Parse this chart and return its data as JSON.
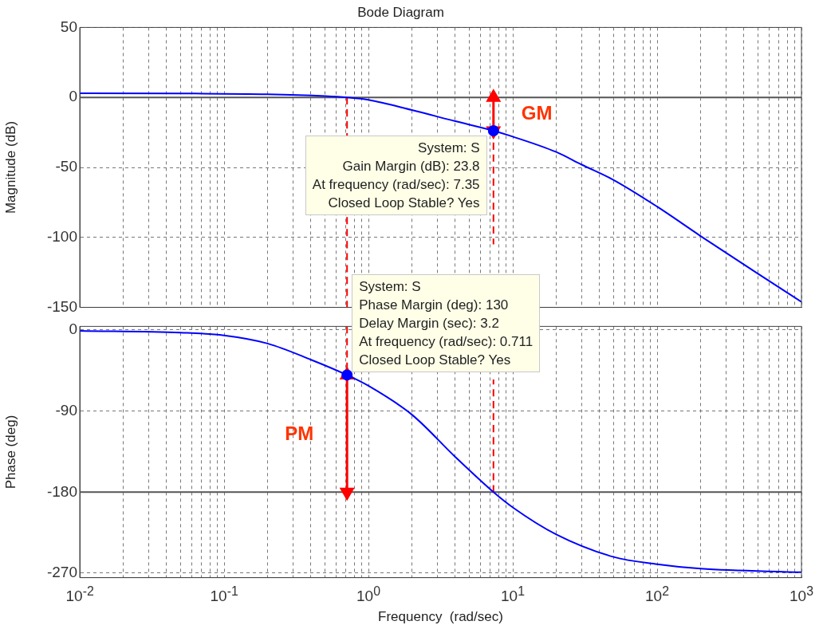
{
  "chart_data": [
    {
      "type": "line",
      "title": "Bode Diagram",
      "ylabel": "Magnitude (dB)",
      "log": "x",
      "grid": true,
      "tick_labels": "y",
      "xlim": [
        0.01,
        1000
      ],
      "xticks": [
        {
          "value": 0.01,
          "label": null
        },
        {
          "value": 0.02,
          "label": null
        },
        {
          "value": 0.03,
          "label": null
        },
        {
          "value": 0.04,
          "label": null
        },
        {
          "value": 0.05,
          "label": null
        },
        {
          "value": 0.06,
          "label": null
        },
        {
          "value": 0.07,
          "label": null
        },
        {
          "value": 0.08,
          "label": null
        },
        {
          "value": 0.09,
          "label": null
        },
        {
          "value": 0.1,
          "label": null
        },
        {
          "value": 0.2,
          "label": null
        },
        {
          "value": 0.3,
          "label": null
        },
        {
          "value": 0.4,
          "label": null
        },
        {
          "value": 0.5,
          "label": null
        },
        {
          "value": 0.6,
          "label": null
        },
        {
          "value": 0.7,
          "label": null
        },
        {
          "value": 0.8,
          "label": null
        },
        {
          "value": 0.9,
          "label": null
        },
        {
          "value": 1,
          "label": null
        },
        {
          "value": 2,
          "label": null
        },
        {
          "value": 3,
          "label": null
        },
        {
          "value": 4,
          "label": null
        },
        {
          "value": 5,
          "label": null
        },
        {
          "value": 6,
          "label": null
        },
        {
          "value": 7,
          "label": null
        },
        {
          "value": 8,
          "label": null
        },
        {
          "value": 9,
          "label": null
        },
        {
          "value": 10,
          "label": null
        },
        {
          "value": 20,
          "label": null
        },
        {
          "value": 30,
          "label": null
        },
        {
          "value": 40,
          "label": null
        },
        {
          "value": 50,
          "label": null
        },
        {
          "value": 60,
          "label": null
        },
        {
          "value": 70,
          "label": null
        },
        {
          "value": 80,
          "label": null
        },
        {
          "value": 90,
          "label": null
        },
        {
          "value": 100,
          "label": null
        },
        {
          "value": 200,
          "label": null
        },
        {
          "value": 300,
          "label": null
        },
        {
          "value": 400,
          "label": null
        },
        {
          "value": 500,
          "label": null
        },
        {
          "value": 600,
          "label": null
        },
        {
          "value": 700,
          "label": null
        },
        {
          "value": 800,
          "label": null
        },
        {
          "value": 900,
          "label": null
        },
        {
          "value": 1000,
          "label": null
        }
      ],
      "ylim": [
        -150,
        50
      ],
      "yticks": [
        -150,
        -100,
        -50,
        0,
        50
      ],
      "series": [
        {
          "color": "#0000ff",
          "marker": "none",
          "x": [
            0.01,
            0.05,
            0.2,
            0.5,
            0.711,
            1,
            2,
            4,
            7.35,
            10,
            20,
            30,
            50,
            100,
            200,
            500,
            1000
          ],
          "values": [
            2.9,
            2.8,
            2.3,
            1,
            0,
            -1.7,
            -9,
            -17,
            -23.8,
            -28,
            -39,
            -48,
            -59,
            -78,
            -99,
            -126,
            -146
          ]
        },
        {
          "type": "scatter",
          "color": "#0000ff",
          "marker": "circle",
          "x": [
            7.35
          ],
          "values": [
            -23.8
          ]
        },
        {
          "color": "#ff0000",
          "marker": "triangle",
          "x": [
            7.35,
            7.35
          ],
          "values": [
            0,
            -23.8
          ]
        },
        {
          "color": "#ff0000",
          "marker": "none",
          "line_style": "dashed",
          "x": [
            0.711,
            0.711
          ],
          "values": [
            0,
            -150
          ]
        },
        {
          "color": "#ff0000",
          "marker": "none",
          "line_style": "dashed",
          "x": [
            7.35,
            7.35
          ],
          "values": [
            -23.8,
            -105
          ]
        }
      ],
      "ref_lines": [
        {
          "axis": "y",
          "value": 0,
          "color": "#555555",
          "line_style": "solid"
        }
      ],
      "annotations": [
        "GM",
        "System: S\nGain Margin (dB): 23.8\nAt frequency (rad/sec): 7.35\nClosed Loop Stable? Yes"
      ]
    },
    {
      "type": "line",
      "xlabel": "Frequency  (rad/sec)",
      "ylabel": "Phase (deg)",
      "log": "x",
      "grid": true,
      "xlim": [
        0.01,
        1000
      ],
      "xticks": [
        {
          "value": 0.01,
          "label": "10$^{-2}$"
        },
        {
          "value": 0.02,
          "label": null
        },
        {
          "value": 0.03,
          "label": null
        },
        {
          "value": 0.04,
          "label": null
        },
        {
          "value": 0.05,
          "label": null
        },
        {
          "value": 0.06,
          "label": null
        },
        {
          "value": 0.07,
          "label": null
        },
        {
          "value": 0.08,
          "label": null
        },
        {
          "value": 0.09,
          "label": null
        },
        {
          "value": 0.1,
          "label": "10$^{-1}$"
        },
        {
          "value": 0.2,
          "label": null
        },
        {
          "value": 0.3,
          "label": null
        },
        {
          "value": 0.4,
          "label": null
        },
        {
          "value": 0.5,
          "label": null
        },
        {
          "value": 0.6,
          "label": null
        },
        {
          "value": 0.7,
          "label": null
        },
        {
          "value": 0.8,
          "label": null
        },
        {
          "value": 0.9,
          "label": null
        },
        {
          "value": 1,
          "label": "10$^{0}$"
        },
        {
          "value": 2,
          "label": null
        },
        {
          "value": 3,
          "label": null
        },
        {
          "value": 4,
          "label": null
        },
        {
          "value": 5,
          "label": null
        },
        {
          "value": 6,
          "label": null
        },
        {
          "value": 7,
          "label": null
        },
        {
          "value": 8,
          "label": null
        },
        {
          "value": 9,
          "label": null
        },
        {
          "value": 10,
          "label": "10$^{1}$"
        },
        {
          "value": 20,
          "label": null
        },
        {
          "value": 30,
          "label": null
        },
        {
          "value": 40,
          "label": null
        },
        {
          "value": 50,
          "label": null
        },
        {
          "value": 60,
          "label": null
        },
        {
          "value": 70,
          "label": null
        },
        {
          "value": 80,
          "label": null
        },
        {
          "value": 90,
          "label": null
        },
        {
          "value": 100,
          "label": "10$^{2}$"
        },
        {
          "value": 200,
          "label": null
        },
        {
          "value": 300,
          "label": null
        },
        {
          "value": 400,
          "label": null
        },
        {
          "value": 500,
          "label": null
        },
        {
          "value": 600,
          "label": null
        },
        {
          "value": 700,
          "label": null
        },
        {
          "value": 800,
          "label": null
        },
        {
          "value": 900,
          "label": null
        },
        {
          "value": 1000,
          "label": "10$^{3}$"
        }
      ],
      "ylim": [
        -275,
        4
      ],
      "yticks": [
        -270,
        -180,
        -90,
        0
      ],
      "series": [
        {
          "color": "#0000ff",
          "marker": "none",
          "x": [
            0.01,
            0.05,
            0.1,
            0.2,
            0.4,
            0.711,
            1,
            2,
            4,
            7.35,
            10,
            20,
            50,
            100,
            200,
            1000
          ],
          "values": [
            -1,
            -3,
            -6,
            -15,
            -33,
            -50,
            -62,
            -94,
            -141,
            -180,
            -197,
            -227,
            -252,
            -260,
            -265,
            -269
          ]
        },
        {
          "type": "scatter",
          "color": "#0000ff",
          "marker": "circle",
          "x": [
            0.711
          ],
          "values": [
            -50
          ]
        },
        {
          "color": "#ff0000",
          "marker": "triangle",
          "x": [
            0.711,
            0.711
          ],
          "values": [
            -180,
            -50
          ]
        },
        {
          "color": "#ff0000",
          "marker": "none",
          "line_style": "dashed",
          "x": [
            0.711,
            0.711
          ],
          "values": [
            4,
            -50
          ]
        },
        {
          "color": "#ff0000",
          "marker": "none",
          "line_style": "dashed",
          "x": [
            7.35,
            7.35
          ],
          "values": [
            -180,
            -55
          ]
        }
      ],
      "ref_lines": [
        {
          "axis": "y",
          "value": -180,
          "color": "#555555",
          "line_style": "solid"
        }
      ],
      "annotations": [
        "PM",
        "System: S\nPhase Margin (deg): 130\nDelay Margin (sec): 3.2\nAt frequency (rad/sec): 0.711\nClosed Loop Stable? Yes"
      ]
    }
  ]
}
